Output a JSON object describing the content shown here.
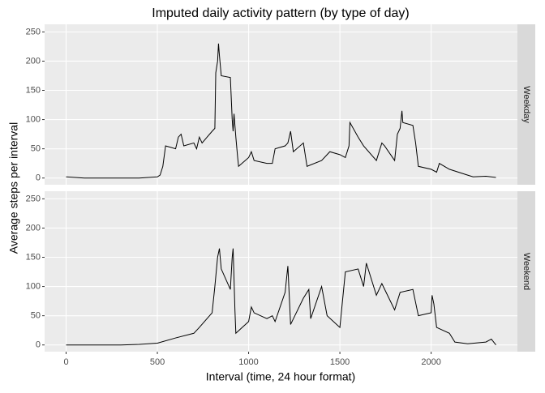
{
  "chart_data": {
    "type": "line",
    "title": "Imputed daily activity pattern (by type of day)",
    "x_label": "Interval (time, 24 hour format)",
    "y_label": "Average steps per interval",
    "xlim": [
      -117.75,
      2472.75
    ],
    "xticks": [
      0,
      500,
      1000,
      1500,
      2000
    ],
    "ylim": [
      -11.5,
      263
    ],
    "yticks": [
      0,
      50,
      100,
      150,
      200,
      250
    ],
    "grid": true,
    "color": "#000000",
    "facets": [
      {
        "label": "Weekday",
        "x": [
          0,
          100,
          200,
          300,
          400,
          500,
          515,
          530,
          545,
          600,
          615,
          630,
          645,
          700,
          715,
          730,
          745,
          800,
          815,
          820,
          830,
          835,
          840,
          850,
          900,
          910,
          915,
          920,
          930,
          940,
          945,
          1000,
          1015,
          1030,
          1100,
          1130,
          1145,
          1200,
          1215,
          1230,
          1245,
          1300,
          1320,
          1400,
          1445,
          1500,
          1530,
          1550,
          1555,
          1600,
          1630,
          1700,
          1730,
          1745,
          1800,
          1815,
          1830,
          1840,
          1845,
          1900,
          1915,
          1930,
          2000,
          2030,
          2045,
          2100,
          2200,
          2230,
          2300,
          2355
        ],
        "values": [
          2,
          0,
          0,
          0,
          0,
          2,
          5,
          20,
          55,
          50,
          70,
          75,
          55,
          60,
          50,
          70,
          60,
          80,
          85,
          180,
          200,
          230,
          210,
          175,
          172,
          100,
          80,
          110,
          70,
          35,
          20,
          35,
          45,
          30,
          25,
          25,
          50,
          55,
          60,
          80,
          45,
          60,
          20,
          30,
          45,
          40,
          35,
          55,
          95,
          70,
          55,
          30,
          60,
          55,
          30,
          75,
          85,
          115,
          95,
          90,
          60,
          20,
          15,
          10,
          25,
          15,
          5,
          2,
          3,
          1
        ]
      },
      {
        "label": "Weekend",
        "x": [
          0,
          100,
          200,
          300,
          400,
          500,
          600,
          700,
          730,
          800,
          815,
          830,
          840,
          850,
          900,
          910,
          915,
          925,
          930,
          1000,
          1015,
          1030,
          1100,
          1130,
          1145,
          1200,
          1215,
          1230,
          1300,
          1330,
          1340,
          1400,
          1430,
          1500,
          1530,
          1600,
          1630,
          1645,
          1700,
          1730,
          1800,
          1830,
          1900,
          1930,
          2000,
          2005,
          2015,
          2030,
          2100,
          2130,
          2200,
          2300,
          2330,
          2355
        ],
        "values": [
          0,
          0,
          0,
          0,
          1,
          3,
          12,
          20,
          30,
          55,
          100,
          150,
          165,
          130,
          95,
          150,
          165,
          60,
          20,
          40,
          65,
          55,
          45,
          50,
          40,
          90,
          135,
          35,
          80,
          95,
          45,
          100,
          50,
          30,
          125,
          130,
          100,
          140,
          85,
          105,
          60,
          90,
          95,
          50,
          55,
          85,
          70,
          30,
          20,
          5,
          2,
          5,
          10,
          0
        ]
      }
    ]
  }
}
